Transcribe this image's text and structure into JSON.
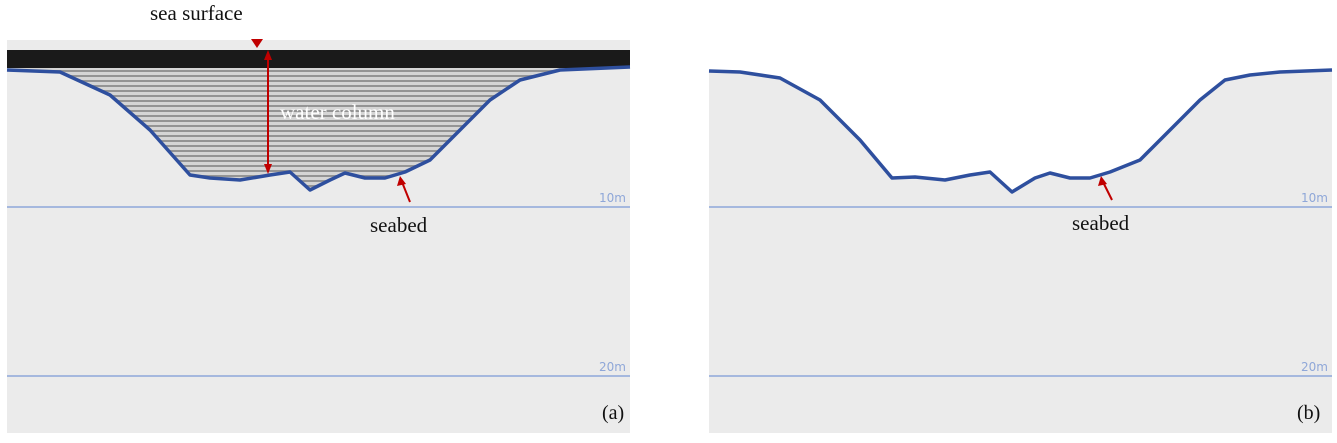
{
  "panels": [
    {
      "label": "(a)",
      "annotations": {
        "sea_surface": "sea surface",
        "water_column": "water column",
        "seabed": "seabed"
      },
      "depth_labels": [
        "10m",
        "20m"
      ]
    },
    {
      "label": "(b)",
      "annotations": {
        "seabed": "seabed"
      },
      "depth_labels": [
        "10m",
        "20m"
      ]
    }
  ]
}
